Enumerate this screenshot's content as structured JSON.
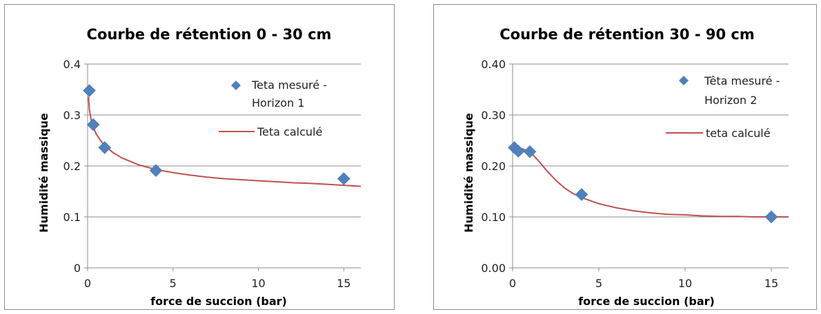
{
  "chart_data": [
    {
      "type": "scatter",
      "title": "Courbe de rétention 0 - 30 cm",
      "xlabel": "force de succion (bar)",
      "ylabel": "Humidité massique",
      "xlim": [
        0,
        16
      ],
      "ylim": [
        0,
        0.4
      ],
      "xticks": [
        "0",
        "5",
        "10",
        "15"
      ],
      "xtick_values": [
        0,
        5,
        10,
        15
      ],
      "yticks": [
        "0",
        "0.1",
        "0.2",
        "0.3",
        "0.4"
      ],
      "ytick_values": [
        0,
        0.1,
        0.2,
        0.3,
        0.4
      ],
      "grid": "horizontal",
      "legend_position": "top-right",
      "series": [
        {
          "name": "Teta mesuré - Horizon 1",
          "kind": "scatter",
          "color": "#4f81bd",
          "x": [
            0.1,
            0.33,
            1,
            4,
            15
          ],
          "y": [
            0.348,
            0.281,
            0.236,
            0.191,
            0.175
          ]
        },
        {
          "name": "Teta calculé",
          "kind": "line",
          "color": "#c0504d",
          "x": [
            0.05,
            0.1,
            0.2,
            0.33,
            0.5,
            0.75,
            1,
            1.5,
            2,
            3,
            4,
            5,
            6,
            7,
            8,
            9,
            10,
            11,
            12,
            13,
            14,
            15,
            16
          ],
          "y": [
            0.336,
            0.311,
            0.291,
            0.276,
            0.263,
            0.25,
            0.24,
            0.226,
            0.216,
            0.202,
            0.193,
            0.187,
            0.182,
            0.178,
            0.175,
            0.173,
            0.171,
            0.169,
            0.167,
            0.166,
            0.164,
            0.162,
            0.16
          ]
        }
      ]
    },
    {
      "type": "scatter",
      "title": "Courbe de rétention 30 - 90 cm",
      "xlabel": "force de succion (bar)",
      "ylabel": "Humidité massique",
      "xlim": [
        0,
        16
      ],
      "ylim": [
        0,
        0.4
      ],
      "xticks": [
        "0",
        "5",
        "10",
        "15"
      ],
      "xtick_values": [
        0,
        5,
        10,
        15
      ],
      "yticks": [
        "0.00",
        "0.10",
        "0.20",
        "0.30",
        "0.40"
      ],
      "ytick_values": [
        0,
        0.1,
        0.2,
        0.3,
        0.4
      ],
      "grid": "horizontal",
      "legend_position": "top-right",
      "series": [
        {
          "name": "Têta mesuré - Horizon 2",
          "kind": "scatter",
          "color": "#4f81bd",
          "x": [
            0.1,
            0.33,
            1,
            4,
            15
          ],
          "y": [
            0.236,
            0.229,
            0.228,
            0.144,
            0.1
          ]
        },
        {
          "name": "teta calculé",
          "kind": "line",
          "color": "#c0504d",
          "x": [
            0.1,
            0.33,
            0.6,
            1,
            1.5,
            2,
            2.5,
            3,
            3.5,
            4,
            5,
            6,
            7,
            8,
            9,
            10,
            11,
            12,
            13,
            14,
            15,
            16
          ],
          "y": [
            0.238,
            0.236,
            0.233,
            0.228,
            0.21,
            0.19,
            0.172,
            0.157,
            0.146,
            0.138,
            0.126,
            0.118,
            0.112,
            0.108,
            0.105,
            0.104,
            0.102,
            0.101,
            0.101,
            0.1,
            0.1,
            0.1
          ]
        }
      ]
    }
  ]
}
